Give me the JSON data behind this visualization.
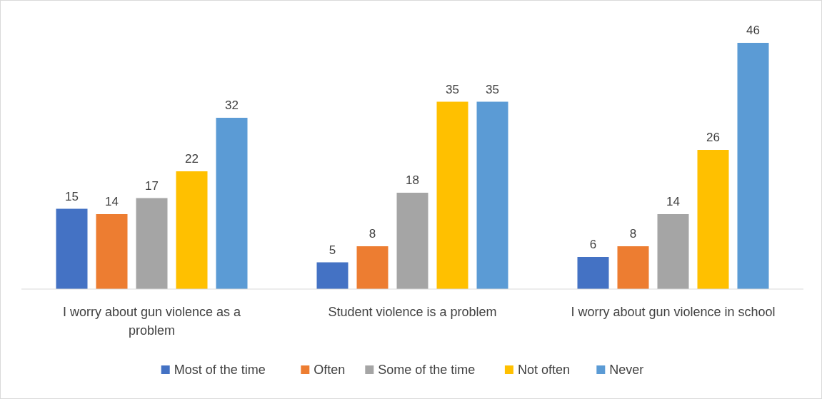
{
  "chart_data": {
    "type": "bar",
    "categories": [
      "I worry about gun violence as a problem",
      "Student violence is a problem",
      "I worry about gun violence in school"
    ],
    "series": [
      {
        "name": "Most of the time",
        "color": "#4472c4",
        "values": [
          15,
          5,
          6
        ]
      },
      {
        "name": "Often",
        "color": "#ed7d31",
        "values": [
          14,
          8,
          8
        ]
      },
      {
        "name": "Some of the time",
        "color": "#a5a5a5",
        "values": [
          17,
          18,
          14
        ]
      },
      {
        "name": "Not often",
        "color": "#ffc000",
        "values": [
          22,
          35,
          26
        ]
      },
      {
        "name": "Never",
        "color": "#5b9bd5",
        "values": [
          32,
          35,
          46
        ]
      }
    ],
    "data_labels": true,
    "legend": "bottom"
  }
}
